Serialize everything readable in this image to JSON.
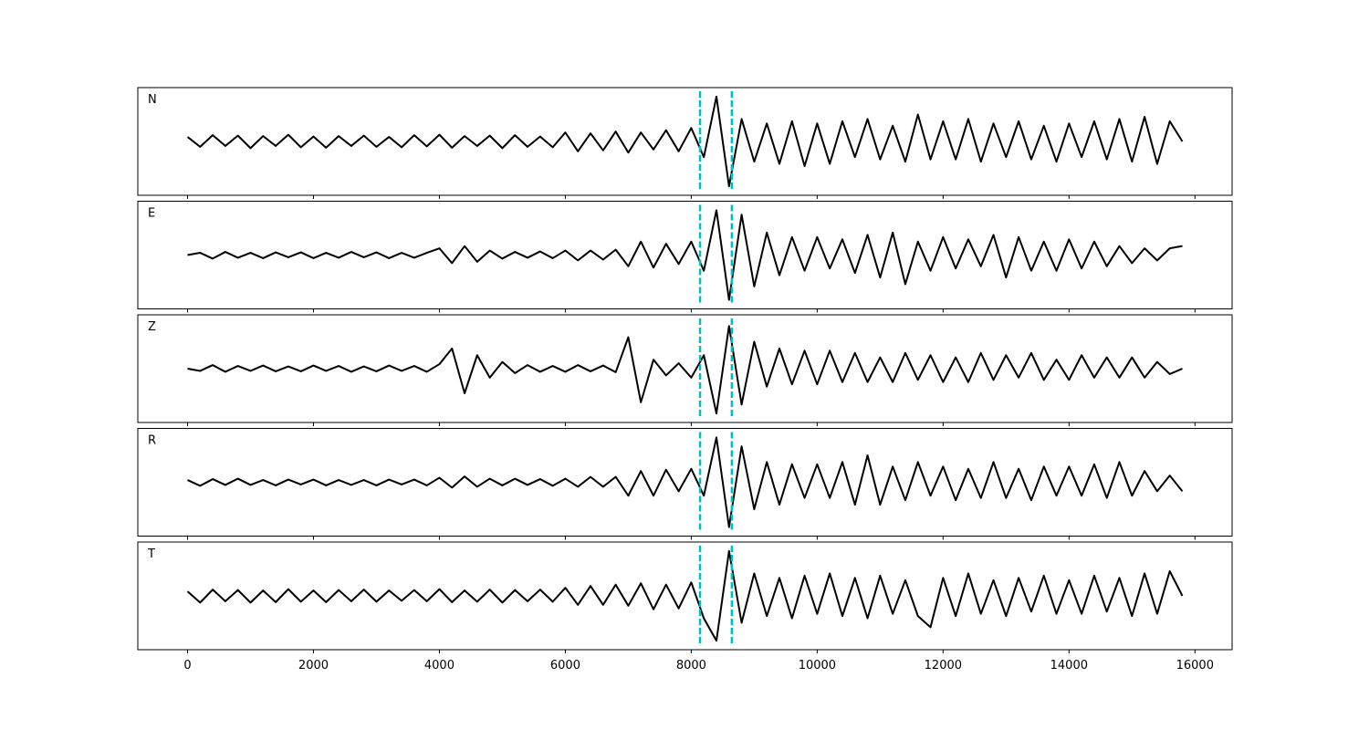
{
  "chart_data": {
    "type": "line",
    "layout": "stacked",
    "x": [
      0,
      200,
      400,
      600,
      800,
      1000,
      1200,
      1400,
      1600,
      1800,
      2000,
      2200,
      2400,
      2600,
      2800,
      3000,
      3200,
      3400,
      3600,
      3800,
      4000,
      4200,
      4400,
      4600,
      4800,
      5000,
      5200,
      5400,
      5600,
      5800,
      6000,
      6200,
      6400,
      6600,
      6800,
      7000,
      7200,
      7400,
      7600,
      7800,
      8000,
      8200,
      8400,
      8600,
      8800,
      9000,
      9200,
      9400,
      9600,
      9800,
      10000,
      10200,
      10400,
      10600,
      10800,
      11000,
      11200,
      11400,
      11600,
      11800,
      12000,
      12200,
      12400,
      12600,
      12800,
      13000,
      13200,
      13400,
      13600,
      13800,
      14000,
      14200,
      14400,
      14600,
      14800,
      15000,
      15200,
      15400,
      15600,
      15800
    ],
    "xlim": [
      -790,
      16590
    ],
    "xticks": [
      0,
      2000,
      4000,
      6000,
      8000,
      10000,
      12000,
      14000,
      16000
    ],
    "ylim": [
      -1.2,
      1.2
    ],
    "vlines": [
      8140,
      8645
    ],
    "vline_color": "#00bfbf",
    "series": [
      {
        "name": "N",
        "color": "#000000",
        "values": [
          0.1,
          -0.12,
          0.14,
          -0.1,
          0.13,
          -0.15,
          0.12,
          -0.1,
          0.15,
          -0.13,
          0.11,
          -0.14,
          0.12,
          -0.1,
          0.13,
          -0.12,
          0.1,
          -0.13,
          0.14,
          -0.11,
          0.15,
          -0.14,
          0.12,
          -0.1,
          0.13,
          -0.15,
          0.14,
          -0.12,
          0.11,
          -0.13,
          0.2,
          -0.22,
          0.18,
          -0.2,
          0.22,
          -0.25,
          0.2,
          -0.18,
          0.25,
          -0.22,
          0.3,
          -0.35,
          1.0,
          -1.0,
          0.5,
          -0.45,
          0.4,
          -0.5,
          0.45,
          -0.55,
          0.4,
          -0.5,
          0.45,
          -0.35,
          0.5,
          -0.4,
          0.35,
          -0.45,
          0.6,
          -0.4,
          0.45,
          -0.4,
          0.5,
          -0.45,
          0.4,
          -0.35,
          0.45,
          -0.4,
          0.35,
          -0.45,
          0.4,
          -0.35,
          0.45,
          -0.4,
          0.5,
          -0.45,
          0.55,
          -0.5,
          0.45,
          0.0
        ]
      },
      {
        "name": "E",
        "color": "#000000",
        "values": [
          0.0,
          0.05,
          -0.08,
          0.07,
          -0.06,
          0.05,
          -0.07,
          0.06,
          -0.05,
          0.06,
          -0.07,
          0.05,
          -0.06,
          0.07,
          -0.05,
          0.06,
          -0.07,
          0.05,
          -0.06,
          0.05,
          0.15,
          -0.18,
          0.2,
          -0.15,
          0.1,
          -0.08,
          0.07,
          -0.06,
          0.08,
          -0.07,
          0.1,
          -0.12,
          0.1,
          -0.1,
          0.12,
          -0.25,
          0.3,
          -0.28,
          0.25,
          -0.2,
          0.3,
          -0.35,
          1.0,
          -1.0,
          0.9,
          -0.7,
          0.5,
          -0.45,
          0.4,
          -0.35,
          0.4,
          -0.3,
          0.35,
          -0.4,
          0.45,
          -0.5,
          0.5,
          -0.65,
          0.3,
          -0.35,
          0.4,
          -0.3,
          0.35,
          -0.25,
          0.45,
          -0.5,
          0.4,
          -0.35,
          0.3,
          -0.35,
          0.35,
          -0.3,
          0.3,
          -0.25,
          0.2,
          -0.18,
          0.15,
          -0.12,
          0.15,
          0.2
        ]
      },
      {
        "name": "Z",
        "color": "#000000",
        "values": [
          0.0,
          -0.05,
          0.08,
          -0.07,
          0.06,
          -0.05,
          0.07,
          -0.06,
          0.05,
          -0.06,
          0.07,
          -0.05,
          0.06,
          -0.07,
          0.05,
          -0.06,
          0.07,
          -0.05,
          0.06,
          -0.07,
          0.1,
          0.45,
          -0.55,
          0.3,
          -0.2,
          0.15,
          -0.1,
          0.08,
          -0.07,
          0.06,
          -0.07,
          0.08,
          -0.06,
          0.07,
          -0.08,
          0.7,
          -0.75,
          0.2,
          -0.15,
          0.12,
          -0.2,
          0.3,
          -1.0,
          0.95,
          -0.8,
          0.6,
          -0.4,
          0.45,
          -0.35,
          0.4,
          -0.35,
          0.4,
          -0.3,
          0.35,
          -0.3,
          0.25,
          -0.3,
          0.35,
          -0.25,
          0.3,
          -0.3,
          0.25,
          -0.3,
          0.35,
          -0.25,
          0.3,
          -0.2,
          0.35,
          -0.25,
          0.2,
          -0.25,
          0.3,
          -0.2,
          0.25,
          -0.2,
          0.25,
          -0.2,
          0.15,
          -0.12,
          0.0
        ]
      },
      {
        "name": "R",
        "color": "#000000",
        "values": [
          0.05,
          -0.08,
          0.07,
          -0.06,
          0.08,
          -0.06,
          0.05,
          -0.07,
          0.06,
          -0.05,
          0.06,
          -0.07,
          0.05,
          -0.06,
          0.05,
          -0.07,
          0.06,
          -0.05,
          0.06,
          -0.07,
          0.1,
          -0.12,
          0.13,
          -0.1,
          0.08,
          -0.07,
          0.08,
          -0.06,
          0.07,
          -0.08,
          0.08,
          -0.1,
          0.12,
          -0.1,
          0.12,
          -0.3,
          0.25,
          -0.3,
          0.28,
          -0.2,
          0.3,
          -0.3,
          1.0,
          -1.0,
          0.8,
          -0.6,
          0.45,
          -0.5,
          0.4,
          -0.35,
          0.4,
          -0.35,
          0.45,
          -0.5,
          0.6,
          -0.5,
          0.35,
          -0.4,
          0.45,
          -0.3,
          0.35,
          -0.4,
          0.3,
          -0.35,
          0.45,
          -0.35,
          0.3,
          -0.4,
          0.35,
          -0.3,
          0.35,
          -0.3,
          0.4,
          -0.35,
          0.45,
          -0.3,
          0.25,
          -0.2,
          0.15,
          -0.2
        ]
      },
      {
        "name": "T",
        "color": "#000000",
        "values": [
          0.1,
          -0.15,
          0.14,
          -0.12,
          0.13,
          -0.15,
          0.12,
          -0.14,
          0.15,
          -0.13,
          0.12,
          -0.14,
          0.13,
          -0.12,
          0.14,
          -0.13,
          0.12,
          -0.11,
          0.13,
          -0.12,
          0.15,
          -0.14,
          0.12,
          -0.13,
          0.14,
          -0.15,
          0.13,
          -0.12,
          0.14,
          -0.13,
          0.18,
          -0.2,
          0.22,
          -0.2,
          0.25,
          -0.22,
          0.28,
          -0.3,
          0.25,
          -0.28,
          0.3,
          -0.5,
          -1.0,
          1.0,
          -0.6,
          0.5,
          -0.45,
          0.4,
          -0.5,
          0.45,
          -0.4,
          0.5,
          -0.45,
          0.4,
          -0.5,
          0.45,
          -0.4,
          0.35,
          -0.45,
          -0.7,
          0.4,
          -0.45,
          0.5,
          -0.4,
          0.35,
          -0.45,
          0.4,
          -0.35,
          0.45,
          -0.4,
          0.35,
          -0.4,
          0.45,
          -0.35,
          0.4,
          -0.45,
          0.5,
          -0.4,
          0.55,
          0.0
        ]
      }
    ]
  }
}
